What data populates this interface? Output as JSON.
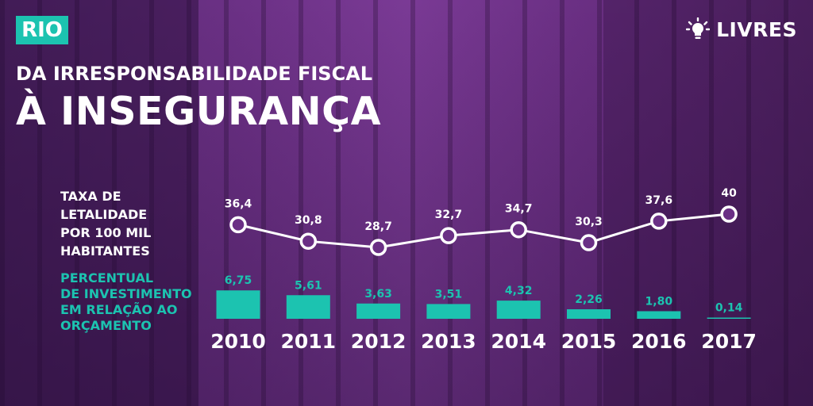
{
  "badge": "RIO",
  "brand": {
    "name": "LIVRES",
    "icon": "lightbulb-icon"
  },
  "header": {
    "subtitle": "DA IRRESPONSABILIDADE FISCAL",
    "title": "À INSEGURANÇA"
  },
  "legend": {
    "lethality_lines": [
      "TAXA DE",
      "LETALIDADE",
      "POR 100 MIL",
      "HABITANTES"
    ],
    "investment_lines": [
      "PERCENTUAL",
      "DE INVESTIMENTO",
      "EM RELAÇÃO AO",
      "ORÇAMENTO"
    ]
  },
  "colors": {
    "accent": "#1cc3b0",
    "text": "#ffffff",
    "background": "#6a2f85"
  },
  "chart_data": {
    "type": "line+bar",
    "categories": [
      "2010",
      "2011",
      "2012",
      "2013",
      "2014",
      "2015",
      "2016",
      "2017"
    ],
    "series": [
      {
        "name": "TAXA DE LETALIDADE POR 100 MIL HABITANTES",
        "type": "line",
        "values": [
          36.4,
          30.8,
          28.7,
          32.7,
          34.7,
          30.3,
          37.6,
          40
        ],
        "labels": [
          "36,4",
          "30,8",
          "28,7",
          "32,7",
          "34,7",
          "30,3",
          "37,6",
          "40"
        ]
      },
      {
        "name": "PERCENTUAL DE INVESTIMENTO EM RELAÇÃO AO ORÇAMENTO",
        "type": "bar",
        "values": [
          6.75,
          5.61,
          3.63,
          3.51,
          4.32,
          2.26,
          1.8,
          0.14
        ],
        "labels": [
          "6,75",
          "5,61",
          "3,63",
          "3,51",
          "4,32",
          "2,26",
          "1,80",
          "0,14"
        ]
      }
    ]
  }
}
